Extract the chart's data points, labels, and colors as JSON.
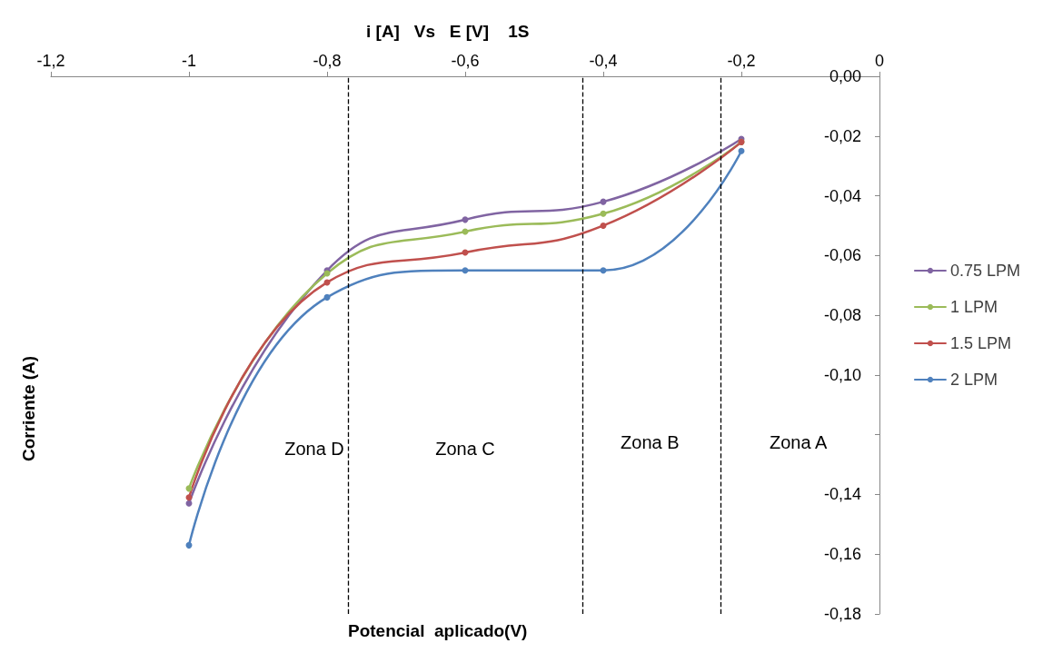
{
  "chart_data": {
    "type": "line",
    "title": "i [A]   Vs   E [V]    1S",
    "xlabel": "Potencial  aplicado(V)",
    "ylabel": "Corriente (A)",
    "x": [
      -1,
      -0.8,
      -0.6,
      -0.4,
      -0.2
    ],
    "series": [
      {
        "name": "0.75 LPM",
        "color": "#8064a2",
        "values": [
          -0.143,
          -0.065,
          -0.048,
          -0.042,
          -0.021
        ]
      },
      {
        "name": "1 LPM",
        "color": "#9bbb59",
        "values": [
          -0.138,
          -0.066,
          -0.052,
          -0.046,
          -0.022
        ]
      },
      {
        "name": "1.5 LPM",
        "color": "#c0504d",
        "values": [
          -0.141,
          -0.069,
          -0.059,
          -0.05,
          -0.022
        ]
      },
      {
        "name": "2 LPM",
        "color": "#4f81bd",
        "values": [
          -0.157,
          -0.074,
          -0.065,
          -0.065,
          -0.025
        ]
      }
    ],
    "xlim": [
      -1.2,
      0
    ],
    "xticks": [
      {
        "value": -1.2,
        "label": "-1,2"
      },
      -1,
      {
        "value": -0.8,
        "label": "-0,8"
      },
      {
        "value": -0.6,
        "label": "-0,6"
      },
      {
        "value": -0.4,
        "label": "-0,4"
      },
      {
        "value": -0.2,
        "label": "-0,2"
      },
      0
    ],
    "ylim": [
      -0.18,
      0
    ],
    "yticks": [
      {
        "value": 0,
        "label": "0,00"
      },
      {
        "value": -0.02,
        "label": "-0,02"
      },
      {
        "value": -0.04,
        "label": "-0,04"
      },
      {
        "value": -0.06,
        "label": "-0,06"
      },
      {
        "value": -0.08,
        "label": "-0,08"
      },
      {
        "value": -0.1,
        "label": "-0,10"
      },
      {
        "value": -0.12,
        "label": null
      },
      {
        "value": -0.14,
        "label": "-0,14"
      },
      {
        "value": -0.16,
        "label": "-0,16"
      },
      {
        "value": -0.18,
        "label": "-0,18"
      }
    ],
    "ref_lines": [
      {
        "axis": "x",
        "value": -0.77,
        "color": "#000000",
        "line_style": "dashed"
      },
      {
        "axis": "x",
        "value": -0.43,
        "color": "#000000",
        "line_style": "dashed"
      },
      {
        "axis": "x",
        "value": -0.235,
        "color": "#000000",
        "line_style": "dashed"
      }
    ],
    "annotations": [
      "Zona D",
      "Zona C",
      "Zona B",
      "Zona A"
    ],
    "marker": "circle",
    "line_style": "solid",
    "grid": false,
    "legend": "right"
  }
}
